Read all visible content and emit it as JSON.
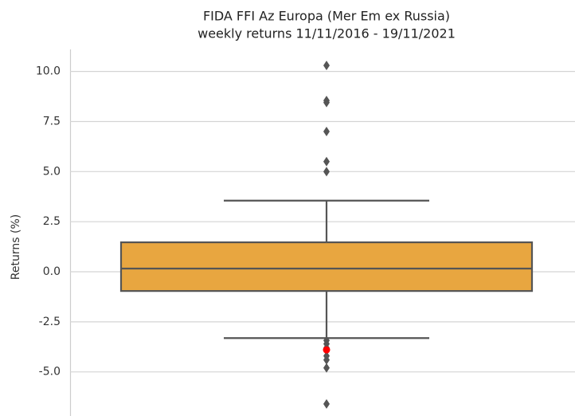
{
  "chart_data": {
    "type": "box",
    "title": "FIDA FFI Az Europa (Mer Em ex Russia)",
    "subtitle": "weekly returns 11/11/2016 - 19/11/2021",
    "ylabel": "Returns (%)",
    "box": {
      "q1": -0.96,
      "median": 0.16,
      "q3": 1.47,
      "whisker_low": -3.31,
      "whisker_high": 3.55,
      "outliers": [
        10.3,
        8.55,
        8.45,
        7.0,
        5.5,
        5.0,
        -3.43,
        -3.6,
        -3.8,
        -4.2,
        -4.4,
        -4.8,
        -6.6
      ],
      "color": "#e8a640",
      "line_color": "#555555"
    },
    "highlight": {
      "value": -3.9,
      "color": "#ff0000"
    },
    "ylim": [
      -7.2,
      11.1
    ],
    "yticks": [
      {
        "value": -5,
        "label": "-5.0"
      },
      -2.5,
      {
        "value": 0,
        "label": "0.0"
      },
      2.5,
      {
        "value": 5,
        "label": "5.0"
      },
      7.5,
      {
        "value": 10,
        "label": "10.0"
      }
    ],
    "grid": true
  }
}
